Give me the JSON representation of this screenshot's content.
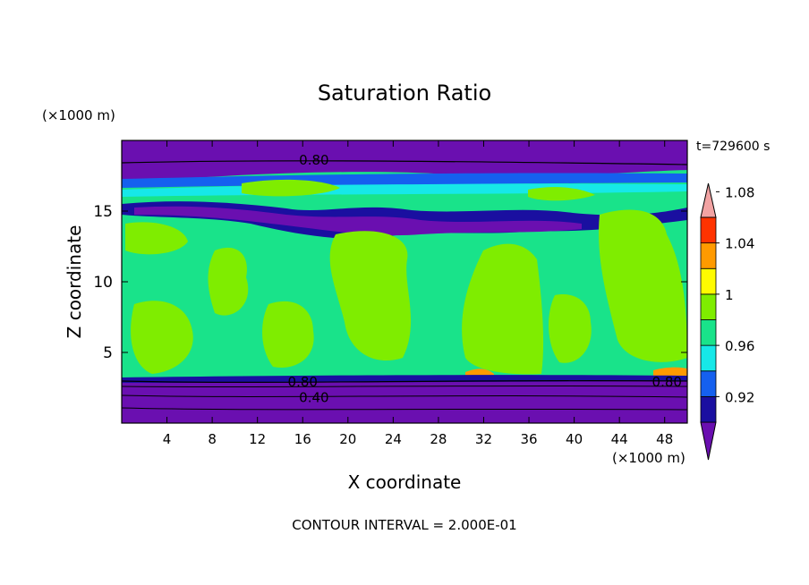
{
  "chart_data": {
    "type": "contour",
    "title": "Saturation Ratio",
    "xlabel": "X coordinate",
    "ylabel": "Z coordinate",
    "x_unit": "(×1000 m)",
    "y_unit": "(×1000 m)",
    "time_label": "t=729600 s",
    "footer": "CONTOUR INTERVAL = 2.000E-01",
    "xlim": [
      0,
      50
    ],
    "ylim": [
      0,
      20
    ],
    "x_ticks": [
      4,
      8,
      12,
      16,
      20,
      24,
      28,
      32,
      36,
      40,
      44,
      48
    ],
    "y_ticks": [
      5,
      10,
      15
    ],
    "contour_labels": [
      {
        "text": "0.80",
        "x": 17,
        "y": 18.6
      },
      {
        "text": "0.80",
        "x": 16,
        "y": 2.9
      },
      {
        "text": "0.40",
        "x": 17,
        "y": 1.8
      },
      {
        "text": "0.80",
        "x": 48.2,
        "y": 2.9
      }
    ],
    "colorbar": {
      "levels": [
        0.92,
        0.96,
        1,
        1.04,
        1.08
      ],
      "tick_labels": [
        "0.92",
        "0.96",
        "1",
        "1.04",
        "1.08"
      ],
      "colors": [
        "#6a0fb0",
        "#1a0fa0",
        "#1560ef",
        "#16e8e8",
        "#19e38a",
        "#7fed00",
        "#fffb00",
        "#ff9a00",
        "#ff3300",
        "#f2a3a3"
      ]
    }
  }
}
